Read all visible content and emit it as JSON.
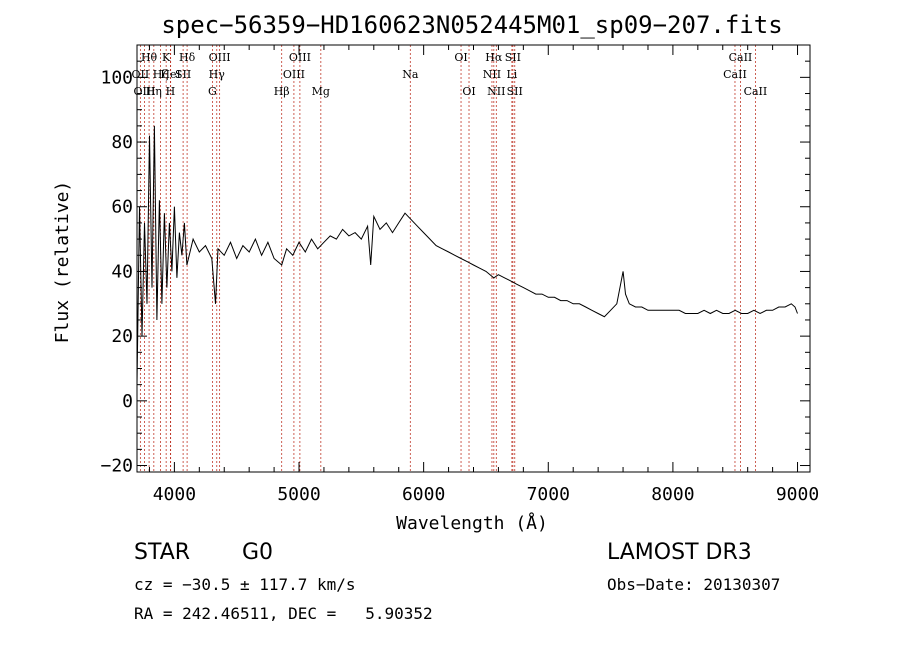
{
  "chart_data": {
    "type": "line",
    "title": "spec−56359−HD160623N052445M01_sp09−207.fits",
    "xlabel": "Wavelength (Å)",
    "ylabel": "Flux (relative)",
    "xlim": [
      3700,
      9100
    ],
    "ylim": [
      -22,
      110
    ],
    "xticks": [
      4000,
      5000,
      6000,
      7000,
      8000,
      9000
    ],
    "yticks": [
      -20,
      0,
      20,
      40,
      60,
      80,
      100
    ],
    "series": [
      {
        "name": "spectrum",
        "x": [
          3700,
          3720,
          3740,
          3760,
          3780,
          3800,
          3820,
          3840,
          3860,
          3880,
          3900,
          3920,
          3940,
          3960,
          3980,
          4000,
          4020,
          4040,
          4060,
          4080,
          4100,
          4150,
          4200,
          4250,
          4300,
          4330,
          4350,
          4400,
          4450,
          4500,
          4550,
          4600,
          4650,
          4700,
          4750,
          4800,
          4861,
          4900,
          4950,
          5000,
          5050,
          5100,
          5150,
          5200,
          5250,
          5300,
          5350,
          5400,
          5450,
          5500,
          5550,
          5575,
          5600,
          5650,
          5700,
          5750,
          5800,
          5850,
          5900,
          5950,
          6000,
          6050,
          6100,
          6150,
          6200,
          6250,
          6300,
          6350,
          6400,
          6450,
          6500,
          6563,
          6600,
          6650,
          6700,
          6750,
          6800,
          6850,
          6900,
          6950,
          7000,
          7050,
          7100,
          7150,
          7200,
          7250,
          7300,
          7350,
          7400,
          7450,
          7500,
          7550,
          7600,
          7620,
          7650,
          7700,
          7750,
          7800,
          7850,
          7900,
          7950,
          8000,
          8050,
          8100,
          8150,
          8200,
          8250,
          8300,
          8350,
          8400,
          8450,
          8500,
          8550,
          8600,
          8650,
          8700,
          8750,
          8800,
          8850,
          8900,
          8950,
          8980,
          9000
        ],
        "y": [
          5,
          60,
          20,
          55,
          30,
          82,
          35,
          85,
          25,
          62,
          30,
          58,
          35,
          55,
          40,
          60,
          38,
          52,
          45,
          55,
          42,
          50,
          46,
          48,
          44,
          30,
          47,
          45,
          49,
          44,
          48,
          46,
          50,
          45,
          49,
          44,
          42,
          47,
          45,
          49,
          46,
          50,
          47,
          49,
          51,
          50,
          53,
          51,
          52,
          50,
          54,
          42,
          57,
          53,
          55,
          52,
          55,
          58,
          56,
          54,
          52,
          50,
          48,
          47,
          46,
          45,
          44,
          43,
          42,
          41,
          40,
          38,
          39,
          38,
          37,
          36,
          35,
          34,
          33,
          33,
          32,
          32,
          31,
          31,
          30,
          30,
          29,
          28,
          27,
          26,
          28,
          30,
          40,
          33,
          30,
          29,
          29,
          28,
          28,
          28,
          28,
          28,
          28,
          27,
          27,
          27,
          28,
          27,
          28,
          27,
          27,
          28,
          27,
          27,
          28,
          27,
          28,
          28,
          29,
          29,
          30,
          29,
          27
        ]
      }
    ],
    "line_groups": [
      {
        "row": 1,
        "lines": [
          {
            "label": "Hθ",
            "wavelength": 3797
          },
          {
            "label": "K",
            "wavelength": 3934
          },
          {
            "label": "Hδ",
            "wavelength": 4102
          },
          {
            "label": "OIII",
            "wavelength": 4363
          },
          {
            "label": "OIII",
            "wavelength": 5007
          },
          {
            "label": "OI",
            "wavelength": 6300
          },
          {
            "label": "Hα",
            "wavelength": 6563
          },
          {
            "label": "SII",
            "wavelength": 6716
          },
          {
            "label": "CaII",
            "wavelength": 8542
          }
        ]
      },
      {
        "row": 2,
        "lines": [
          {
            "label": "OII",
            "wavelength": 3727
          },
          {
            "label": "Hζ",
            "wavelength": 3889
          },
          {
            "label": "HeI",
            "wavelength": 3970
          },
          {
            "label": "SII",
            "wavelength": 4070
          },
          {
            "label": "Hγ",
            "wavelength": 4340
          },
          {
            "label": "OIII",
            "wavelength": 4959
          },
          {
            "label": "Na",
            "wavelength": 5893
          },
          {
            "label": "NII",
            "wavelength": 6548
          },
          {
            "label": "Li",
            "wavelength": 6708
          },
          {
            "label": "CaII",
            "wavelength": 8498
          }
        ]
      },
      {
        "row": 3,
        "lines": [
          {
            "label": "OIII",
            "wavelength": 3760
          },
          {
            "label": "Hη",
            "wavelength": 3835
          },
          {
            "label": "H",
            "wavelength": 3968
          },
          {
            "label": "G",
            "wavelength": 4305
          },
          {
            "label": "Hβ",
            "wavelength": 4861
          },
          {
            "label": "Mg",
            "wavelength": 5175
          },
          {
            "label": "OI",
            "wavelength": 6364
          },
          {
            "label": "NII",
            "wavelength": 6583
          },
          {
            "label": "SII",
            "wavelength": 6731
          },
          {
            "label": "CaII",
            "wavelength": 8662
          }
        ]
      }
    ]
  },
  "info": {
    "class": "STAR",
    "subclass": "G0",
    "survey": "LAMOST DR3",
    "cz": "cz = −30.5 ± 117.7 km/s",
    "obs_date": "Obs−Date: 20130307",
    "coords": "RA = 242.46511, DEC =   5.90352"
  },
  "colors": {
    "line_marker": "#c0392b",
    "spectrum": "#000000",
    "axes": "#000000"
  }
}
